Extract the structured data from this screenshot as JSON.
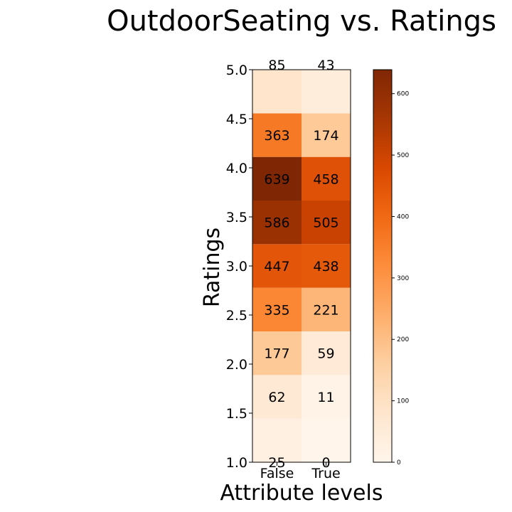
{
  "chart_data": {
    "type": "heatmap",
    "title": "OutdoorSeating vs. Ratings",
    "xlabel": "Attribute levels",
    "ylabel": "Ratings",
    "x_categories": [
      "False",
      "True"
    ],
    "y_categories": [
      "1.0",
      "1.5",
      "2.0",
      "2.5",
      "3.0",
      "3.5",
      "4.0",
      "4.5",
      "5.0"
    ],
    "values": [
      [
        25,
        0
      ],
      [
        62,
        11
      ],
      [
        177,
        59
      ],
      [
        335,
        221
      ],
      [
        447,
        438
      ],
      [
        586,
        505
      ],
      [
        639,
        458
      ],
      [
        363,
        174
      ],
      [
        85,
        43
      ]
    ],
    "colormap": "Oranges",
    "colorbar": {
      "range": [
        0,
        639
      ],
      "ticks": [
        0,
        100,
        200,
        300,
        400,
        500,
        600
      ]
    }
  }
}
